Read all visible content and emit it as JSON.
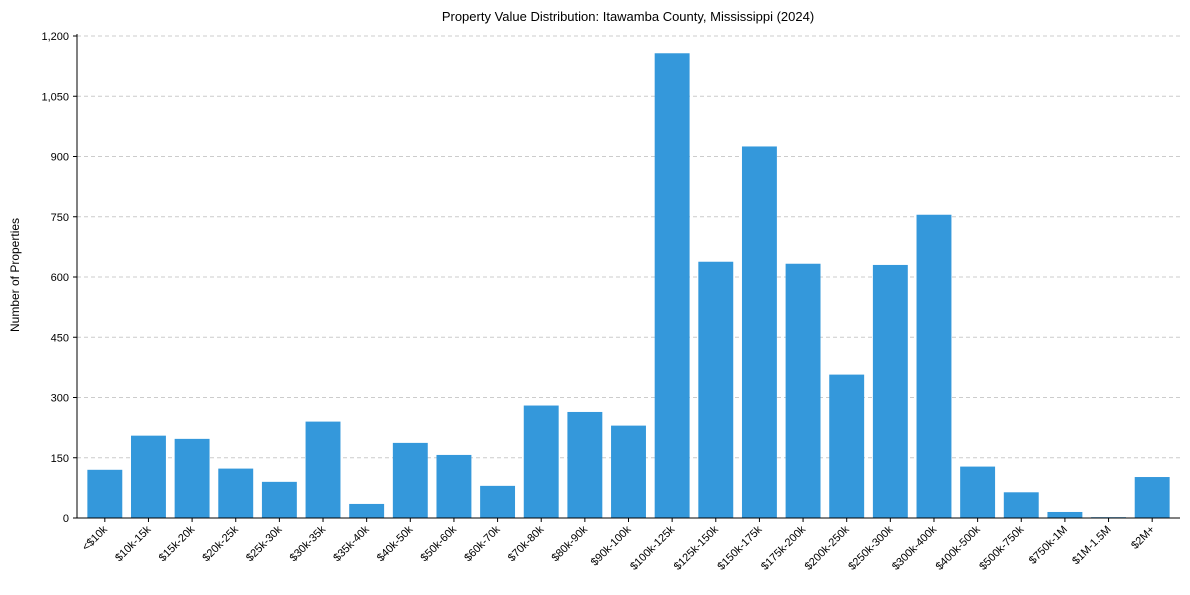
{
  "chart_data": {
    "type": "bar",
    "title": "Property Value Distribution: Itawamba County, Mississippi (2024)",
    "xlabel": "",
    "ylabel": "Number of Properties",
    "ylim": [
      0,
      1200
    ],
    "yticks": [
      0,
      150,
      300,
      450,
      600,
      750,
      900,
      1050,
      1200
    ],
    "ytick_labels": [
      "0",
      "150",
      "300",
      "450",
      "600",
      "750",
      "900",
      "1,050",
      "1,200"
    ],
    "grid": "y, dashed",
    "categories": [
      "<$10k",
      "$10k-15k",
      "$15k-20k",
      "$20k-25k",
      "$25k-30k",
      "$30k-35k",
      "$35k-40k",
      "$40k-50k",
      "$50k-60k",
      "$60k-70k",
      "$70k-80k",
      "$80k-90k",
      "$90k-100k",
      "$100k-125k",
      "$125k-150k",
      "$150k-175k",
      "$175k-200k",
      "$200k-250k",
      "$250k-300k",
      "$300k-400k",
      "$400k-500k",
      "$500k-750k",
      "$750k-1M",
      "$1M-1.5M",
      "$2M+"
    ],
    "values": [
      120,
      205,
      197,
      123,
      90,
      240,
      35,
      187,
      157,
      80,
      280,
      264,
      230,
      1157,
      638,
      925,
      633,
      357,
      630,
      755,
      128,
      64,
      15,
      2,
      102
    ],
    "bar_color": "#3498db"
  }
}
